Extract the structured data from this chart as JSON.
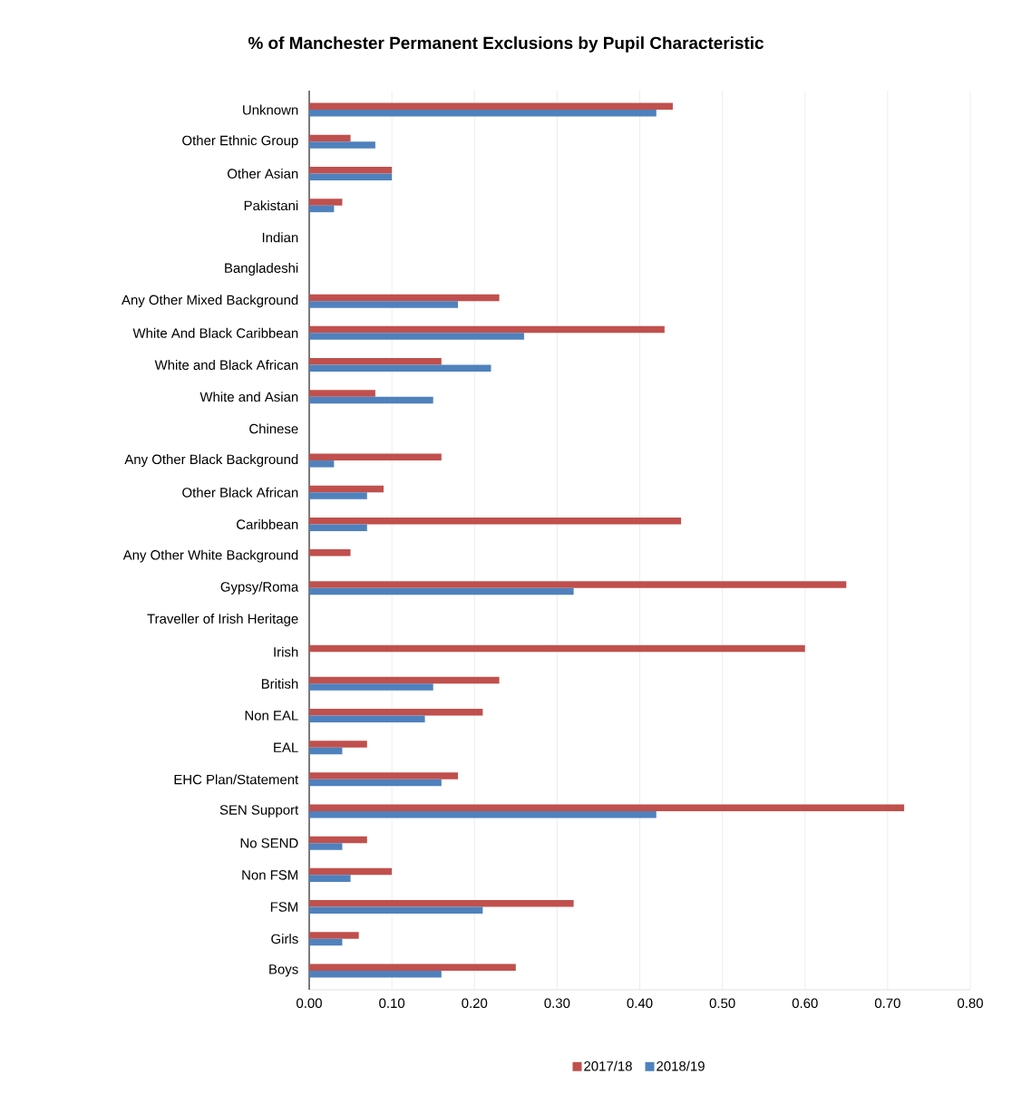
{
  "chart_data": {
    "type": "bar",
    "orientation": "horizontal",
    "title": "% of Manchester Permanent Exclusions by Pupil Characteristic",
    "categories": [
      "Unknown",
      "Other Ethnic Group",
      "Other Asian",
      "Pakistani",
      "Indian",
      "Bangladeshi",
      "Any Other Mixed Background",
      "White And Black Caribbean",
      "White and Black African",
      "White and Asian",
      "Chinese",
      "Any Other Black Background",
      "Other Black African",
      "Caribbean",
      "Any Other White Background",
      "Gypsy/Roma",
      "Traveller of Irish Heritage",
      "Irish",
      "British",
      "Non EAL",
      "EAL",
      "EHC Plan/Statement",
      "SEN Support",
      "No SEND",
      "Non FSM",
      "FSM",
      "Girls",
      "Boys"
    ],
    "series": [
      {
        "name": "2017/18",
        "color": "#c0504d",
        "values": [
          0.44,
          0.05,
          0.1,
          0.04,
          0,
          0,
          0.23,
          0.43,
          0.16,
          0.08,
          0,
          0.16,
          0.09,
          0.45,
          0.05,
          0.65,
          0,
          0.6,
          0.23,
          0.21,
          0.07,
          0.18,
          0.72,
          0.07,
          0.1,
          0.32,
          0.06,
          0.25
        ]
      },
      {
        "name": "2018/19",
        "color": "#4f81bd",
        "values": [
          0.42,
          0.08,
          0.1,
          0.03,
          0,
          0,
          0.18,
          0.26,
          0.22,
          0.15,
          0,
          0.03,
          0.07,
          0.07,
          0,
          0.32,
          0,
          0,
          0.15,
          0.14,
          0.04,
          0.16,
          0.42,
          0.04,
          0.05,
          0.21,
          0.04,
          0.16
        ]
      }
    ],
    "xlim": [
      0,
      0.8
    ],
    "xticks": [
      {
        "value": 0,
        "label": "0.00"
      },
      {
        "value": 0.1,
        "label": "0.10"
      },
      {
        "value": 0.2,
        "label": "0.20"
      },
      {
        "value": 0.3,
        "label": "0.30"
      },
      {
        "value": 0.4,
        "label": "0.40"
      },
      {
        "value": 0.5,
        "label": "0.50"
      },
      {
        "value": 0.6,
        "label": "0.60"
      },
      {
        "value": 0.7,
        "label": "0.70"
      },
      {
        "value": 0.8,
        "label": "0.80"
      }
    ],
    "grid": "x",
    "legend": "bottom"
  }
}
